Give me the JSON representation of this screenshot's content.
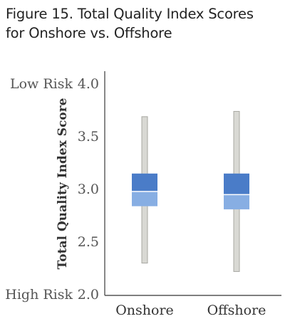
{
  "title_lines": [
    "Figure 15. Total Quality Index Scores",
    "for Onshore vs. Offshore"
  ],
  "chart_data": {
    "type": "box",
    "title": "Figure 15. Total Quality Index Scores for Onshore vs. Offshore",
    "ylabel": "Total Quality Index Score",
    "xlabel": "",
    "ylim": [
      2.0,
      4.0
    ],
    "yticks": [
      "2.0",
      "2.5",
      "3.0",
      "3.5",
      "4.0"
    ],
    "y_annotations": {
      "top": "Low Risk",
      "bottom": "High Risk"
    },
    "categories": [
      "Onshore",
      "Offshore"
    ],
    "boxes": [
      {
        "category": "Onshore",
        "min": 2.3,
        "q1": 2.84,
        "median": 2.98,
        "q3": 3.15,
        "max": 3.69
      },
      {
        "category": "Offshore",
        "min": 2.22,
        "q1": 2.81,
        "median": 2.95,
        "q3": 3.15,
        "max": 3.74
      }
    ],
    "colors": {
      "upper_box": "#4a7cc8",
      "lower_box": "#87aee3",
      "whisker": "#d9d9d4",
      "whisker_border": "#a8a8a2",
      "axis": "#555555"
    },
    "grid": false
  }
}
